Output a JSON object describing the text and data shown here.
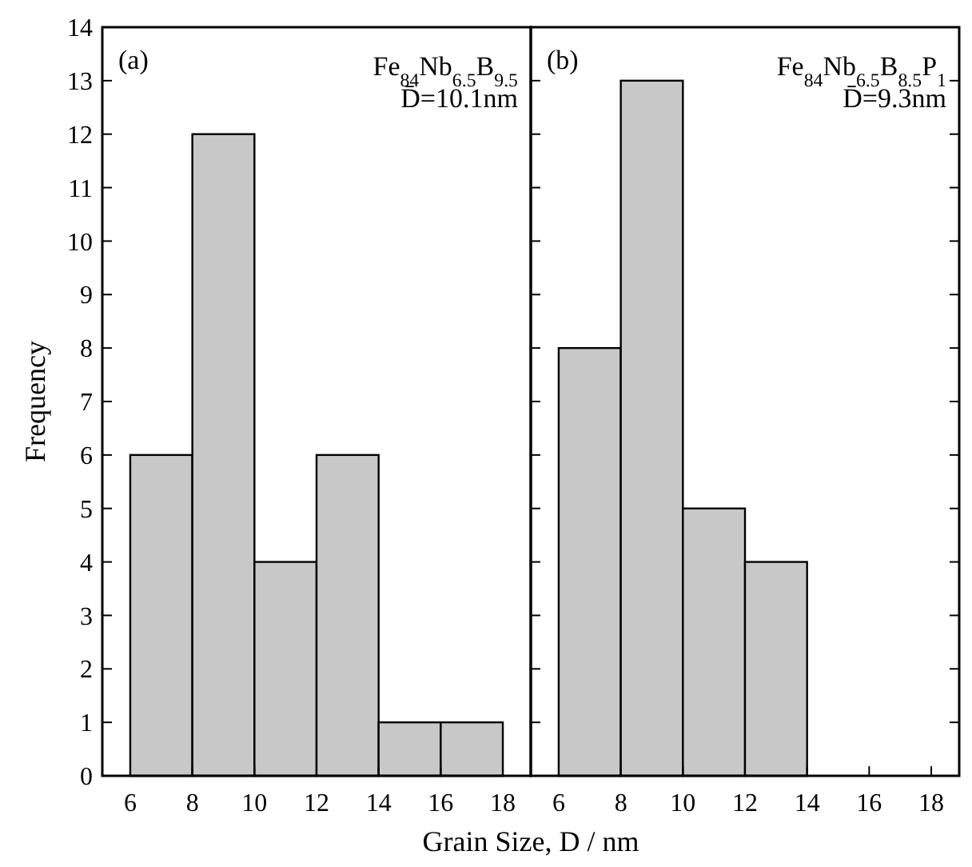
{
  "chart_data": [
    {
      "type": "histogram",
      "bins": [
        6,
        8,
        10,
        12,
        14,
        16,
        18
      ],
      "values": [
        6,
        12,
        4,
        6,
        1,
        1
      ],
      "color": "#c8c8c8",
      "xlim": [
        5.1,
        18.9
      ],
      "xticks": [
        6,
        8,
        10,
        12,
        14,
        16,
        18
      ],
      "ylim": [
        0,
        14
      ],
      "yticks": [
        0,
        1,
        2,
        3,
        4,
        5,
        6,
        7,
        8,
        9,
        10,
        11,
        12,
        13,
        14
      ],
      "ylabel": "Frequency",
      "xlabel": "Grain Size, D / nm",
      "annotations": [
        "(a)",
        "Fe$_{84}$Nb$_{6.5}$B$_{9.5}$",
        "D̄=10.1nm"
      ]
    },
    {
      "type": "histogram",
      "bins": [
        6,
        8,
        10,
        12,
        14
      ],
      "values": [
        8,
        13,
        5,
        4
      ],
      "color": "#c8c8c8",
      "xlim": [
        5.1,
        18.9
      ],
      "xticks": [
        6,
        8,
        10,
        12,
        14,
        16,
        18
      ],
      "ylim": [
        0,
        14
      ],
      "yticks": [
        0,
        1,
        2,
        3,
        4,
        5,
        6,
        7,
        8,
        9,
        10,
        11,
        12,
        13,
        14
      ],
      "tick_labels": "x",
      "annotations": [
        "(b)",
        "Fe$_{84}$Nb$_{6.5}$B$_{8.5}$P$_{1}$",
        "D̄=9.3nm"
      ]
    }
  ]
}
